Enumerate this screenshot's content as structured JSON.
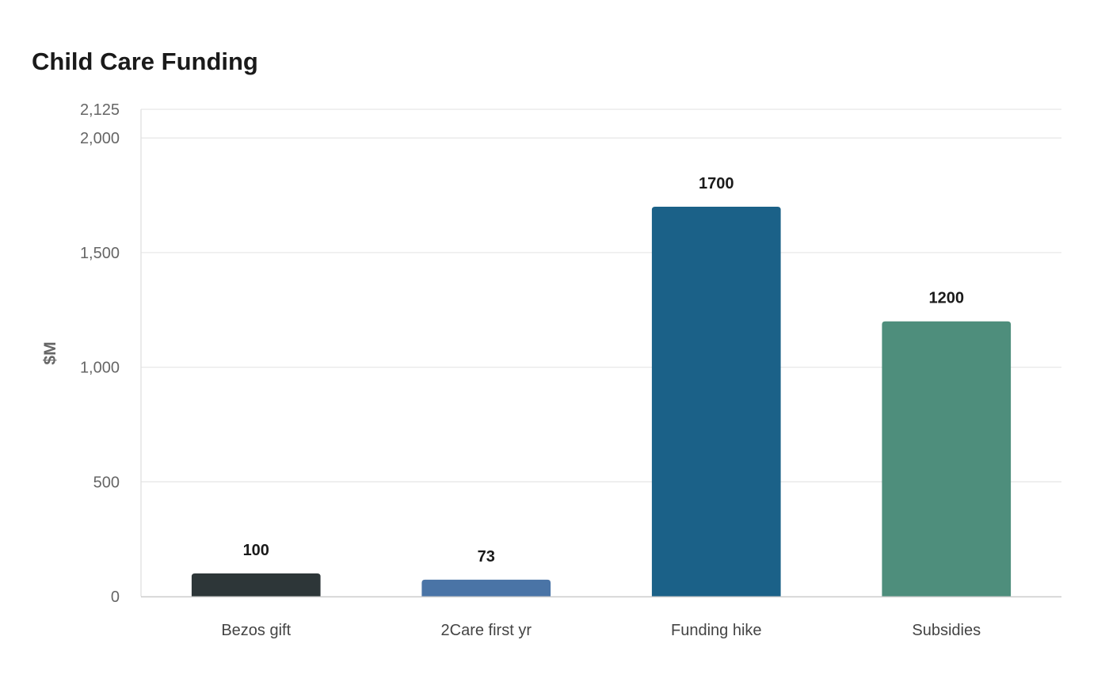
{
  "chart_data": {
    "type": "bar",
    "title": "Child Care Funding",
    "xlabel": "",
    "ylabel": "$M",
    "categories": [
      "Bezos gift",
      "2Care first yr",
      "Funding hike",
      "Subsidies"
    ],
    "values": [
      100,
      73,
      1700,
      1200
    ],
    "colors": [
      "#2d3638",
      "#4a74a6",
      "#1b6188",
      "#4e8e7c"
    ],
    "ylim": [
      0,
      2125
    ],
    "yticks": [
      0,
      500,
      1000,
      1500,
      2000,
      2125
    ],
    "ytick_labels": [
      "0",
      "500",
      "1,000",
      "1,500",
      "2,000",
      "2,125"
    ],
    "grid": true,
    "legend": "none"
  }
}
